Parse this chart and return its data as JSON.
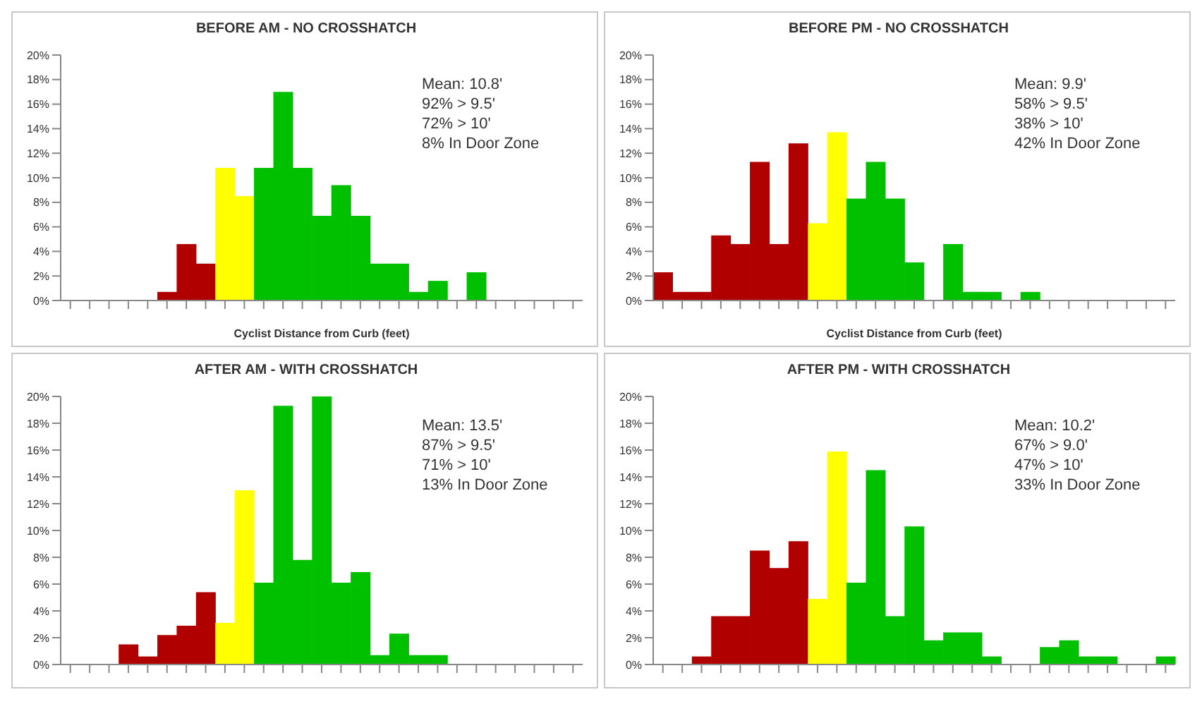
{
  "chart_data": [
    {
      "type": "bar",
      "title": "BEFORE AM - NO CROSSHATCH",
      "xlabel": "Cyclist Distance from Curb (feet)",
      "categories": [
        null,
        null,
        null,
        null,
        null,
        null,
        null,
        null,
        null,
        null,
        null,
        null,
        null,
        null,
        null,
        null,
        null,
        null,
        null,
        null,
        null,
        null,
        null,
        null,
        null,
        null,
        null
      ],
      "values": [
        0,
        0,
        0,
        0,
        0,
        0.7,
        4.6,
        3.0,
        10.8,
        8.5,
        10.8,
        17,
        10.8,
        6.9,
        9.4,
        6.9,
        3.0,
        3.0,
        0.7,
        1.6,
        0,
        2.3,
        0,
        0,
        0,
        0,
        0
      ],
      "colors": [
        "#b00000",
        "#b00000",
        "#b00000",
        "#b00000",
        "#b00000",
        "#b00000",
        "#b00000",
        "#b00000",
        "#ffff00",
        "#ffff00",
        "#00c000",
        "#00c000",
        "#00c000",
        "#00c000",
        "#00c000",
        "#00c000",
        "#00c000",
        "#00c000",
        "#00c000",
        "#00c000",
        "#00c000",
        "#00c000",
        "#00c000",
        "#00c000",
        "#00c000",
        "#00c000",
        "#00c000"
      ],
      "ylim": [
        0,
        20
      ],
      "yticks": [
        {
          "value": 0,
          "label": "0%"
        },
        {
          "value": 2,
          "label": "2%"
        },
        {
          "value": 4,
          "label": "4%"
        },
        {
          "value": 6,
          "label": "6%"
        },
        {
          "value": 8,
          "label": "8%"
        },
        {
          "value": 10,
          "label": "10%"
        },
        {
          "value": 12,
          "label": "12%"
        },
        {
          "value": 14,
          "label": "14%"
        },
        {
          "value": 16,
          "label": "16%"
        },
        {
          "value": 18,
          "label": "18%"
        },
        {
          "value": 20,
          "label": "20%"
        }
      ],
      "annotations": [
        "Mean: 10.8'",
        "92% > 9.5'",
        "72% > 10'",
        "8% In Door Zone"
      ]
    },
    {
      "type": "bar",
      "title": "BEFORE PM - NO CROSSHATCH",
      "xlabel": "Cyclist Distance from Curb (feet)",
      "categories": [
        null,
        null,
        null,
        null,
        null,
        null,
        null,
        null,
        null,
        null,
        null,
        null,
        null,
        null,
        null,
        null,
        null,
        null,
        null,
        null,
        null,
        null,
        null,
        null,
        null,
        null,
        null
      ],
      "values": [
        2.3,
        0.7,
        0.7,
        5.3,
        4.6,
        11.3,
        4.6,
        12.8,
        6.3,
        13.7,
        8.3,
        11.3,
        8.3,
        3.1,
        0,
        4.6,
        0.7,
        0.7,
        0,
        0.7,
        0,
        0,
        0,
        0,
        0,
        0,
        0
      ],
      "colors": [
        "#b00000",
        "#b00000",
        "#b00000",
        "#b00000",
        "#b00000",
        "#b00000",
        "#b00000",
        "#b00000",
        "#ffff00",
        "#ffff00",
        "#00c000",
        "#00c000",
        "#00c000",
        "#00c000",
        "#00c000",
        "#00c000",
        "#00c000",
        "#00c000",
        "#00c000",
        "#00c000",
        "#00c000",
        "#00c000",
        "#00c000",
        "#00c000",
        "#00c000",
        "#00c000",
        "#00c000"
      ],
      "ylim": [
        0,
        20
      ],
      "yticks": [
        {
          "value": 0,
          "label": "0%"
        },
        {
          "value": 2,
          "label": "2%"
        },
        {
          "value": 4,
          "label": "4%"
        },
        {
          "value": 6,
          "label": "6%"
        },
        {
          "value": 8,
          "label": "8%"
        },
        {
          "value": 10,
          "label": "10%"
        },
        {
          "value": 12,
          "label": "12%"
        },
        {
          "value": 14,
          "label": "14%"
        },
        {
          "value": 16,
          "label": "16%"
        },
        {
          "value": 18,
          "label": "18%"
        },
        {
          "value": 20,
          "label": "20%"
        }
      ],
      "annotations": [
        "Mean: 9.9'",
        "58% > 9.5'",
        "38% > 10'",
        "42% In Door Zone"
      ]
    },
    {
      "type": "bar",
      "title": "AFTER AM - WITH CROSSHATCH",
      "categories": [
        null,
        null,
        null,
        null,
        null,
        null,
        null,
        null,
        null,
        null,
        null,
        null,
        null,
        null,
        null,
        null,
        null,
        null,
        null,
        null,
        null,
        null,
        null,
        null,
        null,
        null,
        null
      ],
      "values": [
        0,
        0,
        0,
        1.5,
        0.6,
        2.2,
        2.9,
        5.4,
        3.1,
        13.0,
        6.1,
        19.3,
        7.8,
        20,
        6.1,
        6.9,
        0.7,
        2.3,
        0.7,
        0.7,
        0,
        0,
        0,
        0,
        0,
        0,
        0
      ],
      "colors": [
        "#b00000",
        "#b00000",
        "#b00000",
        "#b00000",
        "#b00000",
        "#b00000",
        "#b00000",
        "#b00000",
        "#ffff00",
        "#ffff00",
        "#00c000",
        "#00c000",
        "#00c000",
        "#00c000",
        "#00c000",
        "#00c000",
        "#00c000",
        "#00c000",
        "#00c000",
        "#00c000",
        "#00c000",
        "#00c000",
        "#00c000",
        "#00c000",
        "#00c000",
        "#00c000",
        "#00c000"
      ],
      "ylim": [
        0,
        20
      ],
      "yticks": [
        {
          "value": 0,
          "label": "0%"
        },
        {
          "value": 2,
          "label": "2%"
        },
        {
          "value": 4,
          "label": "4%"
        },
        {
          "value": 6,
          "label": "6%"
        },
        {
          "value": 8,
          "label": "8%"
        },
        {
          "value": 10,
          "label": "10%"
        },
        {
          "value": 12,
          "label": "12%"
        },
        {
          "value": 14,
          "label": "14%"
        },
        {
          "value": 16,
          "label": "16%"
        },
        {
          "value": 18,
          "label": "18%"
        },
        {
          "value": 20,
          "label": "20%"
        }
      ],
      "annotations": [
        "Mean: 13.5'",
        "87% > 9.5'",
        "71% > 10'",
        "13% In Door Zone"
      ]
    },
    {
      "type": "bar",
      "title": "AFTER PM - WITH CROSSHATCH",
      "categories": [
        null,
        null,
        null,
        null,
        null,
        null,
        null,
        null,
        null,
        null,
        null,
        null,
        null,
        null,
        null,
        null,
        null,
        null,
        null,
        null,
        null,
        null,
        null,
        null,
        null,
        null,
        null
      ],
      "values": [
        0,
        0,
        0.6,
        3.6,
        3.6,
        8.5,
        7.2,
        9.2,
        4.9,
        15.9,
        6.1,
        14.5,
        3.6,
        10.3,
        1.8,
        2.4,
        2.4,
        0.6,
        0,
        0,
        1.3,
        1.8,
        0.6,
        0.6,
        0,
        0,
        0.6
      ],
      "colors": [
        "#b00000",
        "#b00000",
        "#b00000",
        "#b00000",
        "#b00000",
        "#b00000",
        "#b00000",
        "#b00000",
        "#ffff00",
        "#ffff00",
        "#00c000",
        "#00c000",
        "#00c000",
        "#00c000",
        "#00c000",
        "#00c000",
        "#00c000",
        "#00c000",
        "#00c000",
        "#00c000",
        "#00c000",
        "#00c000",
        "#00c000",
        "#00c000",
        "#00c000",
        "#00c000",
        "#00c000"
      ],
      "ylim": [
        0,
        20
      ],
      "yticks": [
        {
          "value": 0,
          "label": "0%"
        },
        {
          "value": 2,
          "label": "2%"
        },
        {
          "value": 4,
          "label": "4%"
        },
        {
          "value": 6,
          "label": "6%"
        },
        {
          "value": 8,
          "label": "8%"
        },
        {
          "value": 10,
          "label": "10%"
        },
        {
          "value": 12,
          "label": "12%"
        },
        {
          "value": 14,
          "label": "14%"
        },
        {
          "value": 16,
          "label": "16%"
        },
        {
          "value": 18,
          "label": "18%"
        },
        {
          "value": 20,
          "label": "20%"
        }
      ],
      "annotations": [
        "Mean: 10.2'",
        "67% > 9.0'",
        "47% > 10'",
        "33% In Door Zone"
      ]
    }
  ]
}
